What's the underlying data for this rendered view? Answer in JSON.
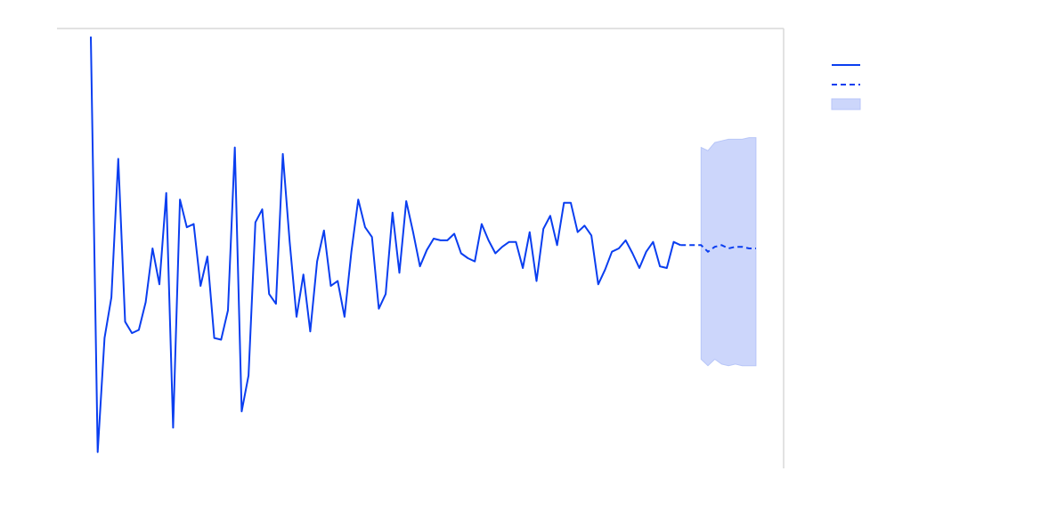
{
  "chart_data": {
    "type": "line",
    "title": "",
    "xlabel": "",
    "ylabel": "",
    "grid": false,
    "legend": "top-right",
    "colors": {
      "actual": "#0a3ef0",
      "forecast": "#0a3ef0",
      "interval": "#ccd6fb"
    },
    "xlim": [
      0,
      100
    ],
    "ylim": [
      -1.35,
      1.35
    ],
    "x_actual_start": 0,
    "x_forecast_start": 89,
    "series": [
      {
        "role": "actual",
        "values": [
          1.3,
          -1.25,
          -0.55,
          -0.3,
          0.55,
          -0.45,
          -0.52,
          -0.5,
          -0.33,
          0.0,
          -0.22,
          0.34,
          -1.1,
          0.3,
          0.13,
          0.15,
          -0.23,
          -0.05,
          -0.55,
          -0.56,
          -0.38,
          0.62,
          -1.0,
          -0.78,
          0.16,
          0.24,
          -0.28,
          -0.34,
          0.58,
          0.04,
          -0.42,
          -0.16,
          -0.51,
          -0.08,
          0.11,
          -0.23,
          -0.2,
          -0.42,
          -0.02,
          0.3,
          0.13,
          0.07,
          -0.37,
          -0.28,
          0.22,
          -0.15,
          0.29,
          0.1,
          -0.11,
          -0.01,
          0.06,
          0.05,
          0.05,
          0.09,
          -0.03,
          -0.06,
          -0.08,
          0.15,
          0.05,
          -0.03,
          0.01,
          0.04,
          0.04,
          -0.12,
          0.1,
          -0.2,
          0.12,
          0.2,
          0.02,
          0.28,
          0.28,
          0.1,
          0.14,
          0.08,
          -0.22,
          -0.13,
          -0.02,
          0.0,
          0.05,
          -0.03,
          -0.12,
          -0.02,
          0.04,
          -0.11,
          -0.12,
          0.04,
          0.02
        ]
      },
      {
        "role": "forecast",
        "values": [
          0.02,
          -0.02,
          0.01,
          0.02,
          0.0,
          0.01,
          0.01,
          0.0,
          0.0
        ]
      }
    ],
    "interval": {
      "upper": [
        0.62,
        0.6,
        0.65,
        0.66,
        0.67,
        0.67,
        0.67,
        0.68,
        0.68
      ],
      "lower": [
        -0.68,
        -0.72,
        -0.68,
        -0.71,
        -0.72,
        -0.71,
        -0.72,
        -0.72,
        -0.72
      ]
    }
  }
}
